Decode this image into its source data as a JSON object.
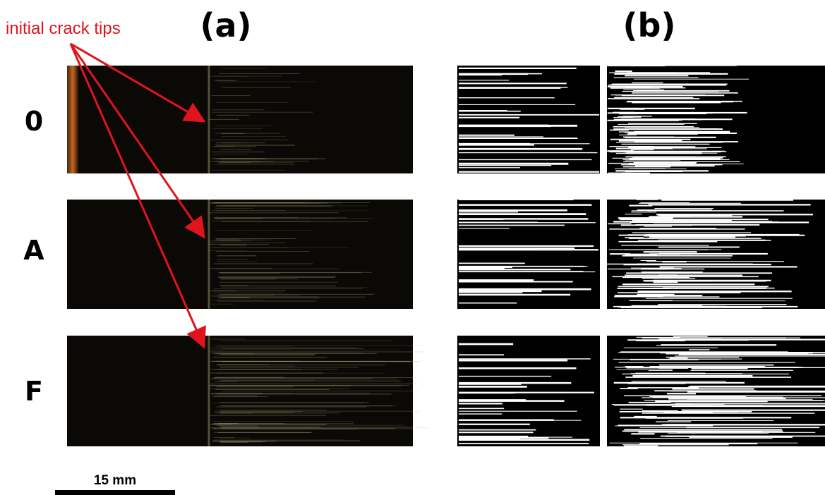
{
  "annotation": "initial crack tips",
  "panels": [
    {
      "label": "(a)"
    },
    {
      "label": "(b)"
    }
  ],
  "rows": [
    {
      "label": "0"
    },
    {
      "label": "A"
    },
    {
      "label": "F"
    }
  ],
  "scale_bar": "15 mm"
}
